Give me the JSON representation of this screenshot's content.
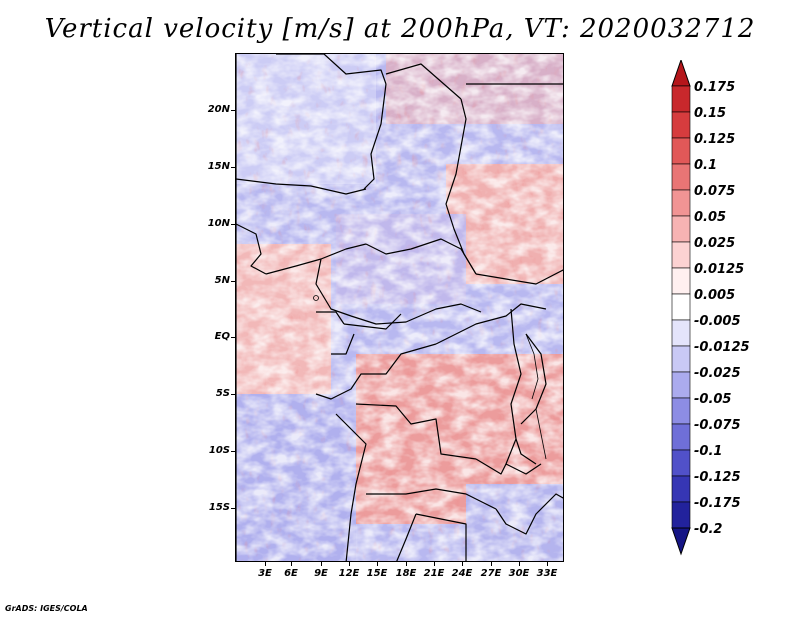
{
  "title": "Vertical velocity [m/s] at 200hPa, VT: 2020032712",
  "credit": "GrADS: IGES/COLA",
  "lat_labels": [
    "20N",
    "15N",
    "10N",
    "5N",
    "EQ",
    "5S",
    "10S",
    "15S"
  ],
  "lon_labels": [
    "3E",
    "6E",
    "9E",
    "12E",
    "15E",
    "18E",
    "21E",
    "24E",
    "27E",
    "30E",
    "33E"
  ],
  "colorbar": {
    "labels": [
      "0.175",
      "0.15",
      "0.125",
      "0.1",
      "0.075",
      "0.05",
      "0.025",
      "0.0125",
      "0.005",
      "-0.005",
      "-0.0125",
      "-0.025",
      "-0.05",
      "-0.075",
      "-0.1",
      "-0.125",
      "-0.175",
      "-0.2"
    ],
    "colors": [
      "#b5161b",
      "#c8282c",
      "#d63c3e",
      "#e15858",
      "#e97575",
      "#f19494",
      "#f7b3b3",
      "#fcd2d2",
      "#fff0f0",
      "#ffffff",
      "#e4e4fb",
      "#c9c9f5",
      "#ababee",
      "#8d8de4",
      "#6f6fd8",
      "#5151c9",
      "#3636b4",
      "#22229c",
      "#151585"
    ]
  }
}
